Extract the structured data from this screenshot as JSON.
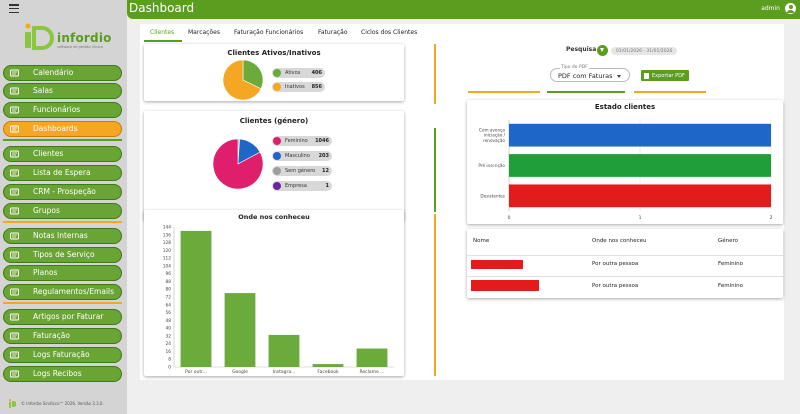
{
  "app": {
    "page_title": "Dashboard",
    "user_name": "admin",
    "logo_text": "infordio",
    "logo_tagline": "software de gestão clínica",
    "footer_text": "© Infordio Sindicco™ 2026. Versão 3.3.0."
  },
  "sidebar": {
    "items": [
      {
        "label": "Calendário",
        "icon": "calendar-icon"
      },
      {
        "label": "Salas",
        "icon": "room-icon"
      },
      {
        "label": "Funcionários",
        "icon": "staff-icon"
      },
      {
        "label": "Dashboards",
        "icon": "dashboard-icon"
      },
      {
        "label": "Clientes",
        "icon": "clients-icon"
      },
      {
        "label": "Lista de Espera",
        "icon": "waitlist-icon"
      },
      {
        "label": "CRM - Prospeção",
        "icon": "crm-icon"
      },
      {
        "label": "Grupos",
        "icon": "groups-icon"
      },
      {
        "label": "Notas Internas",
        "icon": "notes-icon"
      },
      {
        "label": "Tipos de Serviço",
        "icon": "service-types-icon"
      },
      {
        "label": "Planos",
        "icon": "plans-icon"
      },
      {
        "label": "Regulamentos/Emails",
        "icon": "regulations-icon"
      },
      {
        "label": "Artigos por Faturar",
        "icon": "articles-icon"
      },
      {
        "label": "Faturação",
        "icon": "billing-icon"
      },
      {
        "label": "Logs Faturação",
        "icon": "billing-logs-icon"
      },
      {
        "label": "Logs Recibos",
        "icon": "receipt-logs-icon"
      }
    ],
    "active_label": "Dashboards"
  },
  "tabs": [
    {
      "label": "Clientes",
      "active": true
    },
    {
      "label": "Marcações",
      "active": false
    },
    {
      "label": "Faturação Funcionários",
      "active": false
    },
    {
      "label": "Faturação",
      "active": false
    },
    {
      "label": "Ciclos dos Clientes",
      "active": false
    }
  ],
  "filters": {
    "search_label": "Pesquisa",
    "date_range": "01/01/2026 - 31/01/2026",
    "report_type_label": "Tipo de PDF",
    "report_type_value": "PDF com Faturas",
    "export_label": "Exportar PDF"
  },
  "colors": {
    "green": "#5b9d1e",
    "orange": "#f5a623",
    "blue": "#1e66c8",
    "red": "#e31b1b",
    "bar_green": "#6aab3c",
    "pink": "#e01f6c",
    "purple": "#6c24a0"
  },
  "chart_data": [
    {
      "type": "pie",
      "title": "Clientes Ativos/Inativos",
      "slices": [
        {
          "label": "Ativos",
          "value": 406,
          "color": "#6aab3c"
        },
        {
          "label": "Inativos",
          "value": 856,
          "color": "#f5a623"
        }
      ]
    },
    {
      "type": "pie",
      "title": "Clientes (género)",
      "slices": [
        {
          "label": "Feminino",
          "value": 1046,
          "color": "#e01f6c"
        },
        {
          "label": "Masculino",
          "value": 203,
          "color": "#1e66c8"
        },
        {
          "label": "Sem género",
          "value": 12,
          "color": "#9e9e9e"
        },
        {
          "label": "Empresa",
          "value": 1,
          "color": "#6c24a0"
        }
      ]
    },
    {
      "type": "bar",
      "title": "Onde nos conheceu",
      "categories": [
        "Por outr...",
        "Google",
        "Instagra...",
        "Facebook",
        "Reclame ..."
      ],
      "values": [
        140,
        76,
        33,
        3,
        19
      ],
      "ylim": [
        0,
        144
      ],
      "yticks": [
        0,
        8,
        16,
        24,
        32,
        40,
        48,
        56,
        64,
        72,
        80,
        88,
        96,
        104,
        112,
        120,
        128,
        136,
        144
      ],
      "color": "#6aab3c"
    },
    {
      "type": "bar",
      "orientation": "horizontal",
      "title": "Estado clientes",
      "categories": [
        "Com avença iniciação / renovação",
        "Pré inscrição",
        "Desistentes"
      ],
      "values": [
        2,
        2,
        2
      ],
      "colors": [
        "#1e66c8",
        "#1f9e3a",
        "#e31b1b"
      ],
      "xlim": [
        0,
        2
      ],
      "xticks": [
        0,
        1,
        2
      ]
    }
  ],
  "table": {
    "headers": [
      "Nome",
      "Onde nos conheceu",
      "Género"
    ],
    "rows": [
      {
        "source": "Por outra pessoa",
        "gender": "Feminino"
      },
      {
        "source": "Por outra pessoa",
        "gender": "Feminino"
      }
    ]
  }
}
